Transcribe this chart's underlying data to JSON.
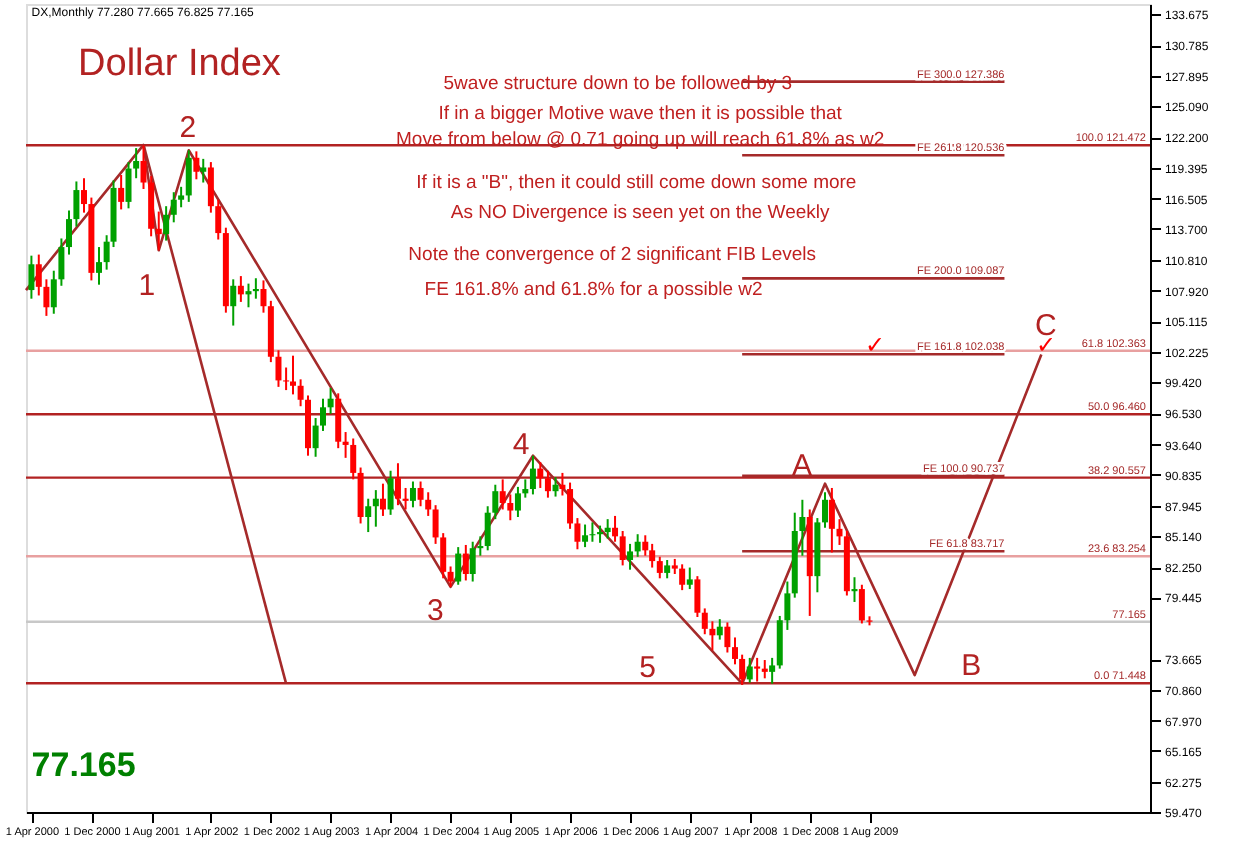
{
  "chart_data": {
    "type": "candlestick",
    "title": "Dollar Index",
    "annotations": [
      "DX,Monthly  77.280 77.665 76.825 77.165",
      "5wave structure down to be followed by 3",
      "If in a bigger Motive wave then it is possible that",
      "Move from below @ 0.71 going up will reach 61.8% as w2",
      "If it is a \"B\",  then it could still come down some more",
      "As NO Divergence is seen yet on the Weekly",
      "Note the convergence of 2 significant FIB Levels",
      "FE  161.8%  and 61.8%   for a possible w2",
      "77.165",
      "1",
      "2",
      "3",
      "4",
      "5",
      "A",
      "B",
      "C",
      "✓",
      "✓",
      {
        "text": "FE 300.0  127.386",
        "x": "2011-02",
        "y": 127.386
      },
      {
        "text": "FE 261.8  120.536",
        "x": "2011-02",
        "y": 120.536
      },
      {
        "text": "FE 200.0  109.087",
        "x": "2011-02",
        "y": 109.087
      },
      {
        "text": "FE 161.8  102.038",
        "x": "2011-02",
        "y": 102.038
      },
      {
        "text": "FE 100.0  90.737",
        "x": "2011-02",
        "y": 90.737
      },
      {
        "text": "FE 61.8  83.717",
        "x": "2011-02",
        "y": 83.717
      }
    ],
    "xlim": [
      "2000-03-10",
      "2012-09-15"
    ],
    "xticks": [
      {
        "value": "2000-04-01",
        "label": "1 Apr 2000"
      },
      {
        "value": "2000-12-01",
        "label": "1 Dec 2000"
      },
      {
        "value": "2001-08-01",
        "label": "1 Aug 2001"
      },
      {
        "value": "2002-04-01",
        "label": "1 Apr 2002"
      },
      {
        "value": "2002-12-01",
        "label": "1 Dec 2002"
      },
      {
        "value": "2003-08-01",
        "label": "1 Aug 2003"
      },
      {
        "value": "2004-04-01",
        "label": "1 Apr 2004"
      },
      {
        "value": "2004-12-01",
        "label": "1 Dec 2004"
      },
      {
        "value": "2005-08-01",
        "label": "1 Aug 2005"
      },
      {
        "value": "2006-04-01",
        "label": "1 Apr 2006"
      },
      {
        "value": "2006-12-01",
        "label": "1 Dec 2006"
      },
      {
        "value": "2007-08-01",
        "label": "1 Aug 2007"
      },
      {
        "value": "2008-04-01",
        "label": "1 Apr 2008"
      },
      {
        "value": "2008-12-01",
        "label": "1 Dec 2008"
      },
      {
        "value": "2009-08-01",
        "label": "1 Aug 2009"
      }
    ],
    "ylim": [
      59.47,
      134.6
    ],
    "yticks": [
      133.675,
      130.785,
      127.895,
      {
        "value": 125.09,
        "label": "125.090"
      },
      {
        "value": 122.2,
        "label": "122.200"
      },
      119.395,
      116.505,
      {
        "value": 113.7,
        "label": "113.700"
      },
      {
        "value": 110.81,
        "label": "110.810"
      },
      {
        "value": 107.92,
        "label": "107.920"
      },
      105.115,
      102.225,
      {
        "value": 99.42,
        "label": "99.420"
      },
      {
        "value": 96.53,
        "label": "96.530"
      },
      {
        "value": 93.64,
        "label": "93.640"
      },
      90.835,
      87.945,
      {
        "value": 85.14,
        "label": "85.140"
      },
      {
        "value": 82.25,
        "label": "82.250"
      },
      79.445,
      73.665,
      {
        "value": 70.86,
        "label": "70.860"
      },
      {
        "value": 67.97,
        "label": "67.970"
      },
      65.165,
      62.275,
      {
        "value": 59.47,
        "label": "59.470"
      }
    ],
    "grid": false,
    "ref_lines": [
      {
        "axis": "y",
        "value": 121.472,
        "label": "100.0  121.472",
        "color": "#b22222"
      },
      {
        "axis": "y",
        "value": 102.363,
        "label": "61.8  102.363",
        "color": "#e8a0a0"
      },
      {
        "axis": "y",
        "value": 96.46,
        "label": "50.0  96.460",
        "color": "#b22222"
      },
      {
        "axis": "y",
        "value": 90.557,
        "label": "38.2  90.557",
        "color": "#b22222"
      },
      {
        "axis": "y",
        "value": 83.254,
        "label": "23.6  83.254",
        "color": "#e8a0a0"
      },
      {
        "axis": "y",
        "value": 71.448,
        "label": "0.0  71.448",
        "color": "#b22222"
      },
      {
        "axis": "y",
        "value": 77.165,
        "label": "77.165",
        "color": "#c8c8c8"
      }
    ],
    "series": [
      {
        "color": "#00a000",
        "x": [
          "2000-04",
          "2000-07",
          "2000-08",
          "2000-09",
          "2000-10",
          "2001-01",
          "2001-02",
          "2001-03",
          "2001-05",
          "2001-06",
          "2001-10",
          "2001-11",
          "2001-12",
          "2002-01",
          "2002-03",
          "2002-07",
          "2002-09",
          "2002-10",
          "2003-06",
          "2003-07",
          "2003-08",
          "2004-01",
          "2004-02",
          "2004-04",
          "2004-07",
          "2005-01",
          "2005-03",
          "2005-04",
          "2005-05",
          "2005-06",
          "2005-09",
          "2005-10",
          "2005-11",
          "2006-02",
          "2006-06",
          "2006-07",
          "2006-08",
          "2006-09",
          "2006-12",
          "2007-01",
          "2007-05",
          "2007-08",
          "2007-12",
          "2008-04",
          "2008-07",
          "2008-08",
          "2008-09",
          "2008-10",
          "2008-11",
          "2009-01",
          "2009-02",
          "2009-06"
        ],
        "ohlc": [
          [
            108.0,
            111.2,
            107.2,
            110.4
          ],
          [
            106.4,
            109.8,
            105.8,
            109.0
          ],
          [
            109.0,
            112.8,
            108.4,
            112.0
          ],
          [
            112.0,
            115.4,
            111.3,
            114.6
          ],
          [
            114.6,
            118.1,
            113.9,
            117.3
          ],
          [
            109.6,
            112.0,
            108.5,
            110.6
          ],
          [
            110.6,
            113.1,
            109.9,
            112.5
          ],
          [
            112.5,
            118.2,
            112.0,
            117.5
          ],
          [
            116.2,
            119.9,
            115.6,
            119.3
          ],
          [
            119.3,
            121.2,
            118.4,
            120.0
          ],
          [
            113.2,
            115.8,
            112.6,
            115.0
          ],
          [
            115.0,
            117.1,
            114.3,
            116.4
          ],
          [
            116.4,
            117.6,
            115.7,
            116.8
          ],
          [
            116.8,
            121.0,
            116.2,
            120.3
          ],
          [
            119.0,
            120.2,
            118.0,
            119.4
          ],
          [
            106.5,
            109.0,
            104.7,
            108.4
          ],
          [
            107.6,
            108.6,
            106.4,
            107.9
          ],
          [
            107.9,
            109.1,
            107.2,
            108.1
          ],
          [
            93.3,
            96.1,
            92.5,
            95.4
          ],
          [
            95.4,
            97.9,
            94.9,
            97.1
          ],
          [
            97.1,
            98.9,
            96.5,
            97.9
          ],
          [
            86.9,
            88.6,
            85.5,
            87.9
          ],
          [
            87.9,
            89.4,
            86.0,
            88.6
          ],
          [
            87.6,
            91.2,
            87.1,
            90.5
          ],
          [
            88.4,
            90.2,
            87.8,
            89.6
          ],
          [
            80.9,
            84.1,
            80.6,
            83.5
          ],
          [
            81.6,
            84.6,
            80.9,
            84.0
          ],
          [
            84.0,
            85.1,
            83.3,
            84.2
          ],
          [
            84.2,
            87.9,
            83.8,
            87.3
          ],
          [
            87.3,
            89.9,
            86.7,
            89.3
          ],
          [
            87.5,
            89.7,
            86.9,
            89.1
          ],
          [
            89.1,
            90.4,
            88.7,
            89.5
          ],
          [
            89.5,
            92.6,
            89.0,
            91.4
          ],
          [
            89.3,
            90.6,
            88.8,
            89.9
          ],
          [
            84.6,
            86.2,
            84.1,
            85.2
          ],
          [
            85.2,
            86.4,
            84.6,
            85.3
          ],
          [
            85.3,
            86.1,
            84.5,
            85.5
          ],
          [
            85.5,
            86.7,
            84.9,
            85.9
          ],
          [
            82.9,
            84.4,
            82.0,
            83.7
          ],
          [
            83.7,
            85.3,
            83.2,
            84.6
          ],
          [
            81.7,
            82.9,
            81.2,
            82.4
          ],
          [
            80.6,
            82.2,
            80.2,
            81.1
          ],
          [
            75.9,
            77.4,
            75.5,
            76.7
          ],
          [
            71.8,
            73.8,
            71.5,
            73.0
          ],
          [
            72.5,
            73.8,
            71.4,
            73.1
          ],
          [
            73.1,
            77.7,
            72.8,
            77.3
          ],
          [
            77.3,
            80.9,
            76.4,
            79.8
          ],
          [
            79.8,
            87.3,
            79.4,
            85.6
          ],
          [
            85.6,
            88.5,
            83.3,
            86.9
          ],
          [
            81.4,
            86.8,
            79.9,
            86.4
          ],
          [
            86.4,
            89.2,
            85.9,
            88.5
          ],
          [
            80.0,
            81.3,
            79.0,
            80.2
          ]
        ]
      },
      {
        "color": "#ff0000",
        "x": [
          "2000-05",
          "2000-06",
          "2000-11",
          "2000-12",
          "2001-04",
          "2001-07",
          "2001-08",
          "2001-09",
          "2002-02",
          "2002-04",
          "2002-05",
          "2002-06",
          "2002-08",
          "2002-11",
          "2002-12",
          "2003-01",
          "2003-02",
          "2003-03",
          "2003-04",
          "2003-05",
          "2003-09",
          "2003-10",
          "2003-11",
          "2003-12",
          "2004-03",
          "2004-05",
          "2004-06",
          "2004-08",
          "2004-09",
          "2004-10",
          "2004-11",
          "2004-12",
          "2005-02",
          "2005-07",
          "2005-08",
          "2005-12",
          "2006-01",
          "2006-03",
          "2006-04",
          "2006-05",
          "2006-10",
          "2006-11",
          "2007-02",
          "2007-03",
          "2007-04",
          "2007-06",
          "2007-07",
          "2007-09",
          "2007-10",
          "2007-11",
          "2008-01",
          "2008-02",
          "2008-03",
          "2008-05",
          "2008-06",
          "2008-12",
          "2009-03",
          "2009-04",
          "2009-05",
          "2009-07",
          "2009-08"
        ],
        "ohlc": [
          [
            110.4,
            111.3,
            107.5,
            108.3
          ],
          [
            108.3,
            109.0,
            105.6,
            106.4
          ],
          [
            117.3,
            118.4,
            115.2,
            116.0
          ],
          [
            116.0,
            116.6,
            108.9,
            109.6
          ],
          [
            117.5,
            118.7,
            115.5,
            116.2
          ],
          [
            120.0,
            121.47,
            117.4,
            118.0
          ],
          [
            118.0,
            118.6,
            113.0,
            113.7
          ],
          [
            113.7,
            115.3,
            111.7,
            113.2
          ],
          [
            120.3,
            120.9,
            118.3,
            119.0
          ],
          [
            119.4,
            119.9,
            115.2,
            115.8
          ],
          [
            115.8,
            116.4,
            112.7,
            113.3
          ],
          [
            113.3,
            113.8,
            105.9,
            106.5
          ],
          [
            108.4,
            109.3,
            106.9,
            107.6
          ],
          [
            108.1,
            108.9,
            105.9,
            106.5
          ],
          [
            106.5,
            107.0,
            101.3,
            101.8
          ],
          [
            101.8,
            102.4,
            99.0,
            99.6
          ],
          [
            99.6,
            100.8,
            98.7,
            99.5
          ],
          [
            99.5,
            101.9,
            98.3,
            99.1
          ],
          [
            99.1,
            99.7,
            97.2,
            97.8
          ],
          [
            97.8,
            98.2,
            92.6,
            93.3
          ],
          [
            97.9,
            98.4,
            93.3,
            93.9
          ],
          [
            93.9,
            94.8,
            92.4,
            93.6
          ],
          [
            93.6,
            94.2,
            90.4,
            91.0
          ],
          [
            91.0,
            91.5,
            86.3,
            86.9
          ],
          [
            88.6,
            90.0,
            87.0,
            87.6
          ],
          [
            90.5,
            91.9,
            88.0,
            88.6
          ],
          [
            88.6,
            89.6,
            87.6,
            88.4
          ],
          [
            89.6,
            90.2,
            87.9,
            88.5
          ],
          [
            88.5,
            89.2,
            87.0,
            87.6
          ],
          [
            87.6,
            88.0,
            84.4,
            85.0
          ],
          [
            85.0,
            85.4,
            81.2,
            81.8
          ],
          [
            81.8,
            82.3,
            80.4,
            80.9
          ],
          [
            83.5,
            84.3,
            81.0,
            81.6
          ],
          [
            89.3,
            90.4,
            87.6,
            88.2
          ],
          [
            88.2,
            89.0,
            86.6,
            87.5
          ],
          [
            91.4,
            92.0,
            89.6,
            90.5
          ],
          [
            90.5,
            91.2,
            88.7,
            89.3
          ],
          [
            89.9,
            91.0,
            88.9,
            89.5
          ],
          [
            89.5,
            90.1,
            85.8,
            86.3
          ],
          [
            86.3,
            86.8,
            83.9,
            84.6
          ],
          [
            85.9,
            87.0,
            84.6,
            85.1
          ],
          [
            85.1,
            85.6,
            82.4,
            82.9
          ],
          [
            84.6,
            85.2,
            83.3,
            83.8
          ],
          [
            83.8,
            84.4,
            82.2,
            82.8
          ],
          [
            82.8,
            83.2,
            81.2,
            81.7
          ],
          [
            82.4,
            83.0,
            81.6,
            82.1
          ],
          [
            82.1,
            82.5,
            80.1,
            80.6
          ],
          [
            81.1,
            81.4,
            77.6,
            78.0
          ],
          [
            78.0,
            78.4,
            76.0,
            76.5
          ],
          [
            76.5,
            77.2,
            74.5,
            75.9
          ],
          [
            76.7,
            77.1,
            74.3,
            74.8
          ],
          [
            74.8,
            75.7,
            73.2,
            73.7
          ],
          [
            73.7,
            74.1,
            71.3,
            71.8
          ],
          [
            73.0,
            73.8,
            71.6,
            72.8
          ],
          [
            72.8,
            73.6,
            71.9,
            72.5
          ],
          [
            86.9,
            87.6,
            77.7,
            81.4
          ],
          [
            88.5,
            89.6,
            83.6,
            85.8
          ],
          [
            85.8,
            86.7,
            84.3,
            85.1
          ],
          [
            85.1,
            85.6,
            79.6,
            80.0
          ],
          [
            80.2,
            80.6,
            77.0,
            77.28
          ],
          [
            77.28,
            77.665,
            76.825,
            77.165
          ]
        ]
      },
      {
        "type": "line",
        "color": "#a52a2a",
        "x": [
          "2000-03-10",
          "2001-07",
          "2001-09",
          "2002-01",
          "2004-12",
          "2005-11",
          "2008-03",
          "2009-02",
          "2010-02",
          "2011-07"
        ],
        "values": [
          108.0,
          121.5,
          111.7,
          121.0,
          80.4,
          92.6,
          71.4,
          90.0,
          72.2,
          102.0
        ]
      },
      {
        "type": "line",
        "color": "#a52a2a",
        "x": [
          "2001-07",
          "2003-02"
        ],
        "values": [
          121.5,
          71.4
        ]
      },
      {
        "type": "line",
        "color": "#a52a2a",
        "x": [
          "2008-03",
          "2011-02"
        ],
        "values": [
          127.386,
          127.386
        ]
      },
      {
        "type": "line",
        "color": "#a52a2a",
        "x": [
          "2008-03",
          "2011-02"
        ],
        "values": [
          120.536,
          120.536
        ]
      },
      {
        "type": "line",
        "color": "#a52a2a",
        "x": [
          "2008-03",
          "2011-02"
        ],
        "values": [
          109.087,
          109.087
        ]
      },
      {
        "type": "line",
        "color": "#a52a2a",
        "x": [
          "2008-03",
          "2011-02"
        ],
        "values": [
          102.038,
          102.038
        ]
      },
      {
        "type": "line",
        "color": "#a52a2a",
        "x": [
          "2008-03",
          "2011-02"
        ],
        "values": [
          90.737,
          90.737
        ]
      },
      {
        "type": "line",
        "color": "#a52a2a",
        "x": [
          "2008-03",
          "2011-02"
        ],
        "values": [
          83.717,
          83.717
        ]
      }
    ]
  }
}
